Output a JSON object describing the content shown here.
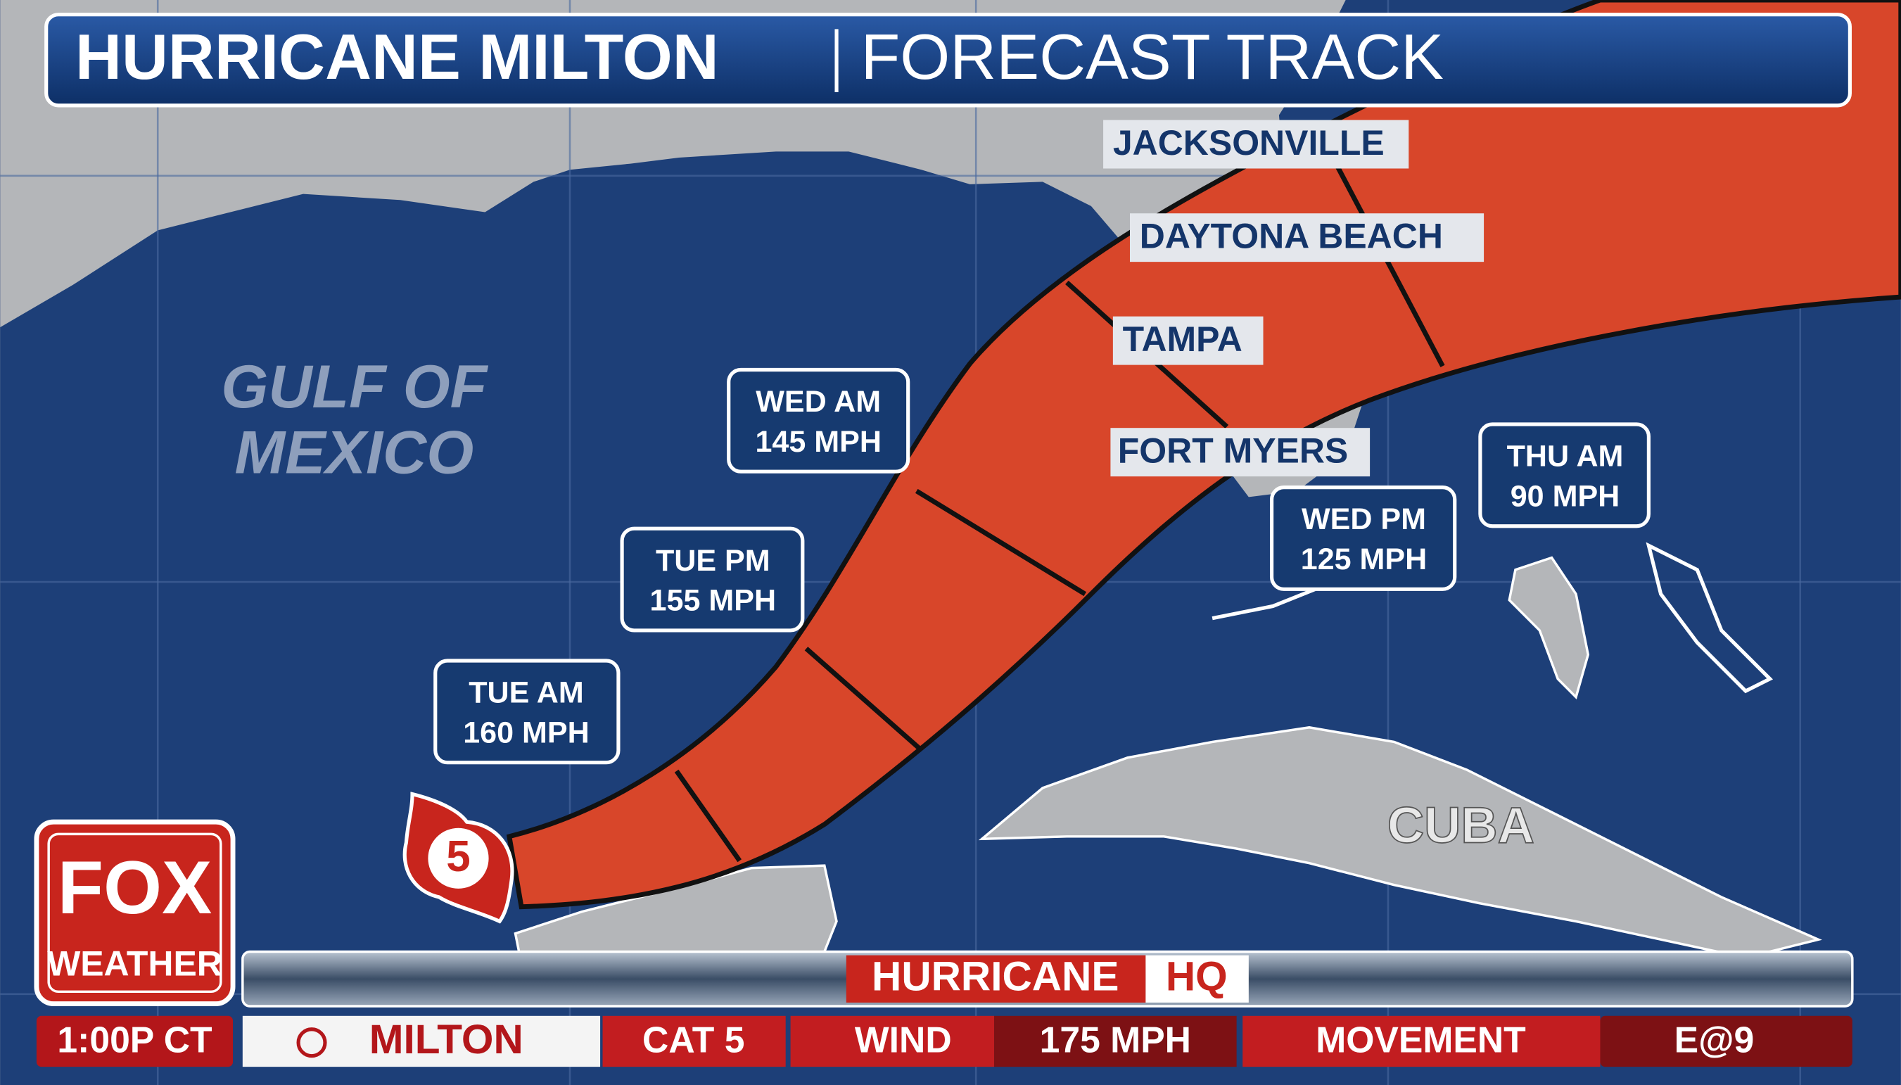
{
  "header": {
    "title": "HURRICANE MILTON",
    "subtitle": "FORECAST TRACK"
  },
  "map": {
    "water_label": [
      "GULF OF",
      "MEXICO"
    ],
    "land_label": "CUBA",
    "cities": [
      "JACKSONVILLE",
      "DAYTONA BEACH",
      "TAMPA",
      "FORT MYERS"
    ]
  },
  "storm_icon": {
    "category": "5"
  },
  "forecast_points": [
    {
      "time": "TUE AM",
      "wind": "160 MPH"
    },
    {
      "time": "TUE PM",
      "wind": "155 MPH"
    },
    {
      "time": "WED AM",
      "wind": "145 MPH"
    },
    {
      "time": "WED PM",
      "wind": "125 MPH"
    },
    {
      "time": "THU AM",
      "wind": "90 MPH"
    }
  ],
  "logo": {
    "brand": "FOX",
    "sub": "WEATHER"
  },
  "banner": {
    "word": "HURRICANE",
    "suffix": "HQ"
  },
  "ticker": {
    "time": "1:00P CT",
    "storm": "MILTON",
    "category": "CAT 5",
    "wind_label": "WIND",
    "wind": "175 MPH",
    "movement_label": "MOVEMENT",
    "movement": "E@9"
  }
}
